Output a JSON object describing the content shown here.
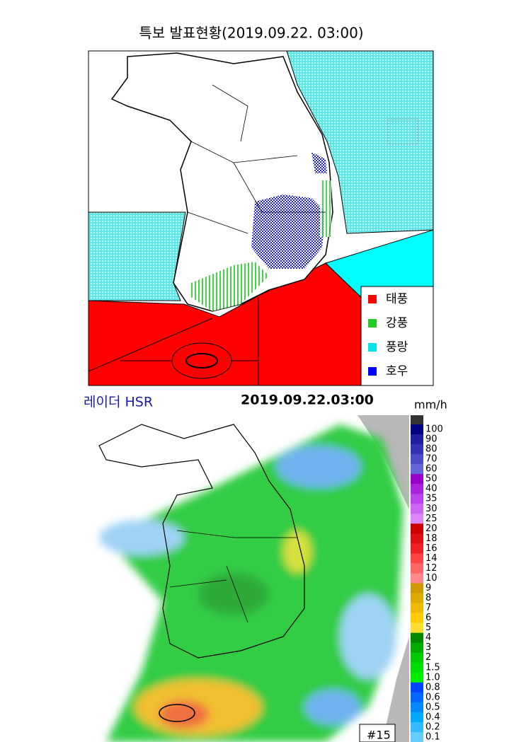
{
  "warning_map": {
    "title": "특보 발표현황(2019.09.22. 03:00)",
    "legend": [
      {
        "label": "태풍",
        "color": "#ff0000"
      },
      {
        "label": "강풍",
        "color": "#22cc22"
      },
      {
        "label": "풍랑",
        "color": "#00e6e6"
      },
      {
        "label": "호우",
        "color": "#0000ff"
      }
    ]
  },
  "radar": {
    "title": "레이더 HSR",
    "time": "2019.09.22.03:00",
    "unit": "mm/h",
    "station": "#15",
    "scale": [
      "100",
      "90",
      "80",
      "70",
      "60",
      "50",
      "40",
      "35",
      "30",
      "25",
      "20",
      "18",
      "16",
      "14",
      "12",
      "10",
      "9",
      "8",
      "7",
      "6",
      "5",
      "4",
      "3",
      "2",
      "1.5",
      "1.0",
      "0.8",
      "0.6",
      "0.5",
      "0.4",
      "0.2",
      "0.1"
    ]
  }
}
